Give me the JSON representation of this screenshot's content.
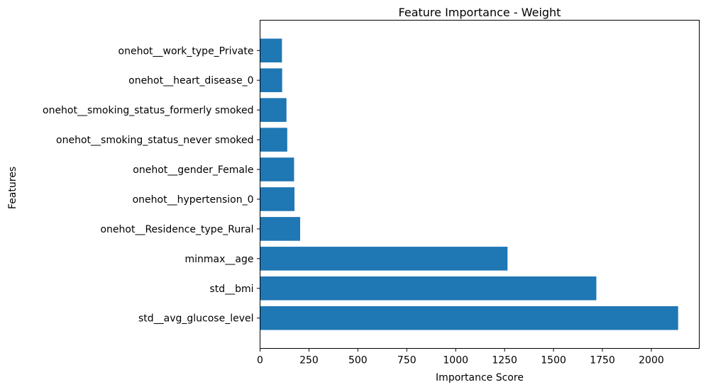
{
  "chart_data": {
    "type": "bar",
    "orientation": "horizontal",
    "title": "Feature Importance - Weight",
    "xlabel": "Importance Score",
    "ylabel": "Features",
    "categories": [
      "std__avg_glucose_level",
      "std__bmi",
      "minmax__age",
      "onehot__Residence_type_Rural",
      "onehot__hypertension_0",
      "onehot__gender_Female",
      "onehot__smoking_status_never smoked",
      "onehot__smoking_status_formerly smoked",
      "onehot__heart_disease_0",
      "onehot__work_type_Private"
    ],
    "values": [
      2137,
      1719,
      1265,
      205,
      176,
      174,
      139,
      135,
      113,
      112
    ],
    "xlim": [
      0,
      2245
    ],
    "xticks": [
      0,
      250,
      500,
      750,
      1000,
      1250,
      1500,
      1750,
      2000
    ],
    "bar_color": "#1f77b4",
    "grid": false,
    "legend": false
  }
}
